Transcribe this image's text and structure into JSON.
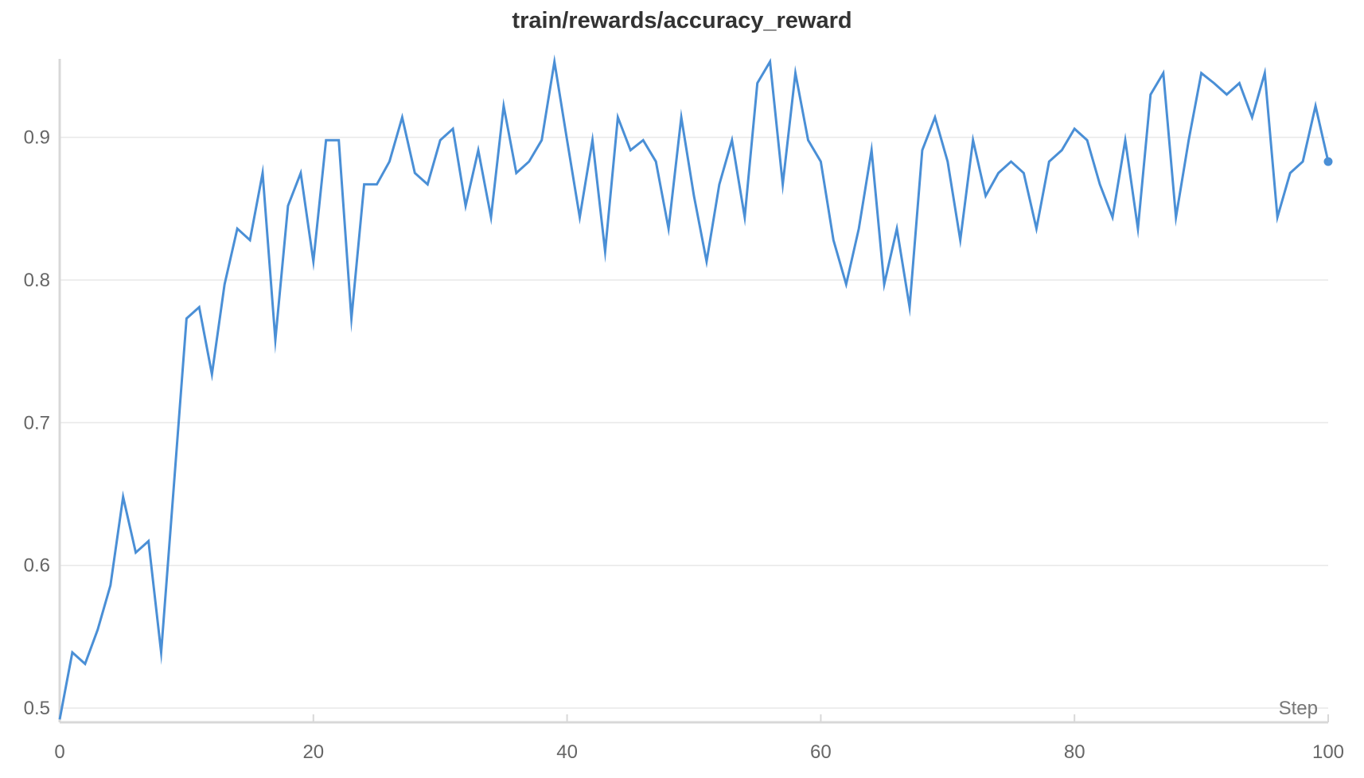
{
  "chart_data": {
    "type": "line",
    "title": "train/rewards/accuracy_reward",
    "xlabel": "Step",
    "ylabel": "",
    "xlim": [
      0,
      100
    ],
    "ylim": [
      0.49,
      0.955
    ],
    "x_ticks": [
      0,
      20,
      40,
      60,
      80,
      100
    ],
    "y_ticks": [
      0.5,
      0.6,
      0.7,
      0.8,
      0.9
    ],
    "grid": "horizontal",
    "line_color": "#4a8fd6",
    "series": [
      {
        "x": [
          0,
          1,
          2,
          3,
          4,
          5,
          6,
          7,
          8,
          9,
          10,
          11,
          12,
          13,
          14,
          15,
          16,
          17,
          18,
          19,
          20,
          21,
          22,
          23,
          24,
          25,
          26,
          27,
          28,
          29,
          30,
          31,
          32,
          33,
          34,
          35,
          36,
          37,
          38,
          39,
          40,
          41,
          42,
          43,
          44,
          45,
          46,
          47,
          48,
          49,
          50,
          51,
          52,
          53,
          54,
          55,
          56,
          57,
          58,
          59,
          60,
          61,
          62,
          63,
          64,
          65,
          66,
          67,
          68,
          69,
          70,
          71,
          72,
          73,
          74,
          75,
          76,
          77,
          78,
          79,
          80,
          81,
          82,
          83,
          84,
          85,
          86,
          87,
          88,
          89,
          90,
          91,
          92,
          93,
          94,
          95,
          96,
          97,
          98,
          99,
          100
        ],
        "values": [
          0.492,
          0.539,
          0.531,
          0.555,
          0.586,
          0.648,
          0.609,
          0.617,
          0.539,
          0.656,
          0.773,
          0.781,
          0.734,
          0.797,
          0.836,
          0.828,
          0.875,
          0.758,
          0.852,
          0.875,
          0.813,
          0.898,
          0.898,
          0.773,
          0.867,
          0.867,
          0.883,
          0.914,
          0.875,
          0.867,
          0.898,
          0.906,
          0.852,
          0.891,
          0.844,
          0.922,
          0.875,
          0.883,
          0.898,
          0.953,
          0.898,
          0.844,
          0.898,
          0.82,
          0.914,
          0.891,
          0.898,
          0.883,
          0.836,
          0.914,
          0.859,
          0.813,
          0.867,
          0.898,
          0.844,
          0.938,
          0.953,
          0.867,
          0.945,
          0.898,
          0.883,
          0.828,
          0.797,
          0.836,
          0.891,
          0.797,
          0.836,
          0.781,
          0.891,
          0.914,
          0.883,
          0.828,
          0.898,
          0.859,
          0.875,
          0.883,
          0.875,
          0.836,
          0.883,
          0.891,
          0.906,
          0.898,
          0.867,
          0.844,
          0.898,
          0.836,
          0.93,
          0.945,
          0.844,
          0.898,
          0.945,
          0.938,
          0.93,
          0.938,
          0.914,
          0.945,
          0.844,
          0.875,
          0.883,
          0.922,
          0.883
        ]
      }
    ]
  }
}
